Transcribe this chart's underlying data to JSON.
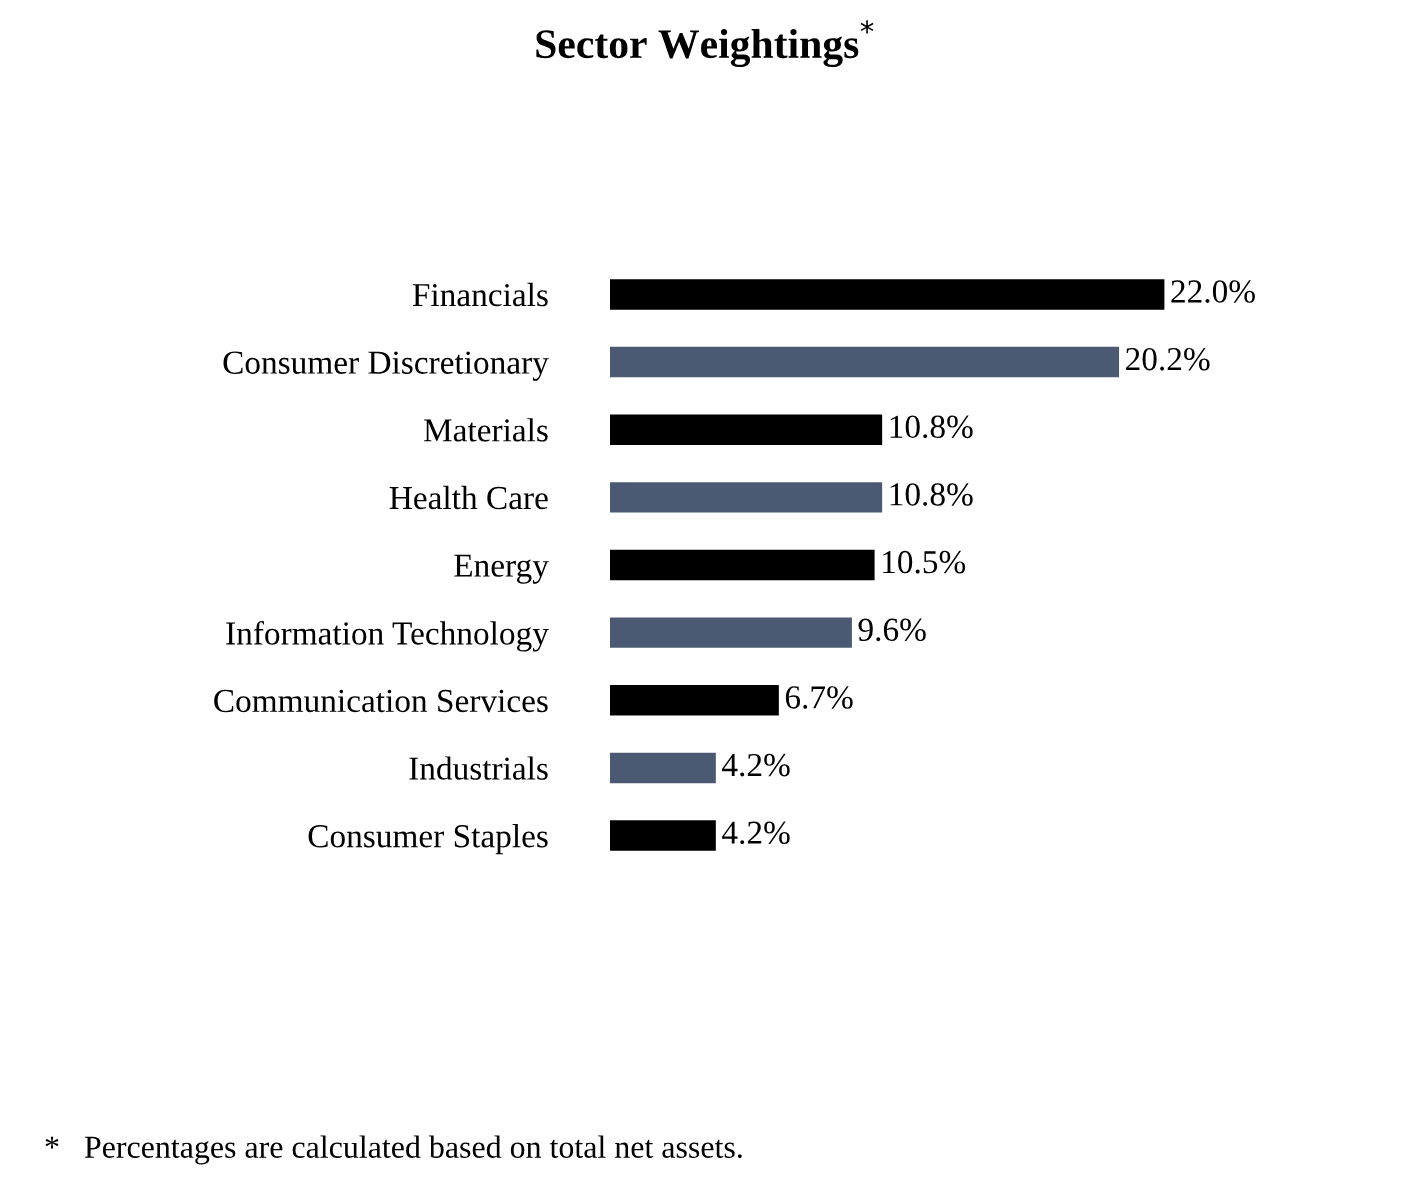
{
  "chart_data": {
    "type": "bar",
    "orientation": "horizontal",
    "title": "Sector Weightings$^{*}$",
    "categories": [
      "Financials",
      "Consumer Discretionary",
      "Materials",
      "Health Care",
      "Energy",
      "Information Technology",
      "Communication Services",
      "Industrials",
      "Consumer Staples"
    ],
    "values": [
      22.0,
      20.2,
      10.8,
      10.8,
      10.5,
      9.6,
      6.7,
      4.2,
      4.2
    ],
    "value_labels": [
      "22.0%",
      "20.2%",
      "10.8%",
      "10.8%",
      "10.5%",
      "9.6%",
      "6.7%",
      "4.2%",
      "4.2%"
    ],
    "colors": [
      "#000000",
      "#4b5a72",
      "#000000",
      "#4b5a72",
      "#000000",
      "#4b5a72",
      "#000000",
      "#4b5a72",
      "#000000"
    ],
    "annotations": [
      "*   Percentages are calculated based on total net assets."
    ]
  }
}
